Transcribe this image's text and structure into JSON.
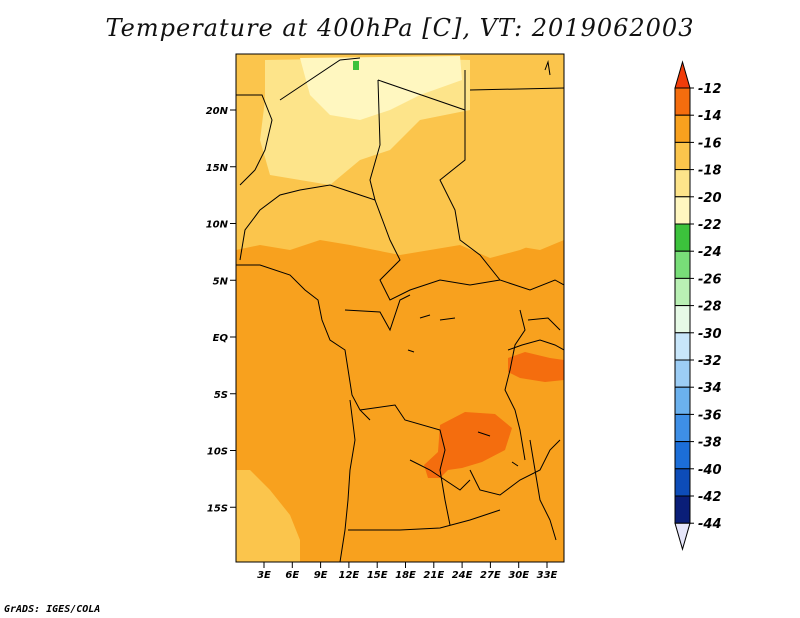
{
  "title": "Temperature at 400hPa [C], VT: 2019062003",
  "credit": "GrADS: IGES/COLA",
  "map": {
    "lat_labels": [
      "20N",
      "15N",
      "10N",
      "5N",
      "EQ",
      "5S",
      "10S",
      "15S"
    ],
    "lon_labels": [
      "3E",
      "6E",
      "9E",
      "12E",
      "15E",
      "18E",
      "21E",
      "24E",
      "27E",
      "30E",
      "33E"
    ],
    "fill_colors": {
      "band_-22_-20": "#fff7c0",
      "band_-20_-18": "#fde48a",
      "band_-18_-16": "#fbc54c",
      "band_-16_-14": "#f8a11e",
      "band_-14_-12": "#f46d0e",
      "band_-24_-22": "#3cc23c"
    }
  },
  "colorbar": {
    "labels": [
      "-12",
      "-14",
      "-16",
      "-18",
      "-20",
      "-22",
      "-24",
      "-26",
      "-28",
      "-30",
      "-32",
      "-34",
      "-36",
      "-38",
      "-40",
      "-42",
      "-44"
    ],
    "colors": [
      "#f03c0a",
      "#f46d0e",
      "#f8a11e",
      "#fbc54c",
      "#fde48a",
      "#fff7c0",
      "#3cc23c",
      "#78de78",
      "#b9f0b4",
      "#e6fae6",
      "#c8e6fa",
      "#9ccdf5",
      "#6bb1ee",
      "#3e8fe6",
      "#1c6ed8",
      "#0d4cb8",
      "#0a1e78",
      "#e6e6fa"
    ]
  }
}
